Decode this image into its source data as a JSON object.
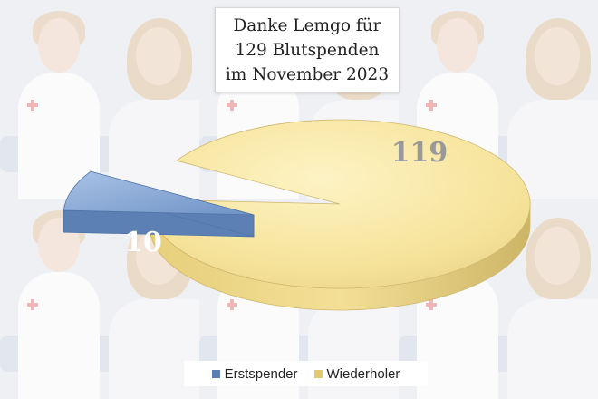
{
  "chart_data": {
    "type": "pie",
    "title_lines": [
      "Danke Lemgo für",
      "129 Blutspenden",
      "im November 2023"
    ],
    "categories": [
      "Erstspender",
      "Wiederholer"
    ],
    "values": [
      10,
      119
    ],
    "data_labels": [
      "10",
      "119"
    ],
    "legend_position": "bottom",
    "style": "3d-exploded"
  },
  "colors": {
    "erstspender": "#7c9fce",
    "erstspender_dark": "#4f74a8",
    "wiederholer": "#f6e39a",
    "wiederholer_dark": "#d9c57a",
    "label": "#9b9b9b"
  }
}
